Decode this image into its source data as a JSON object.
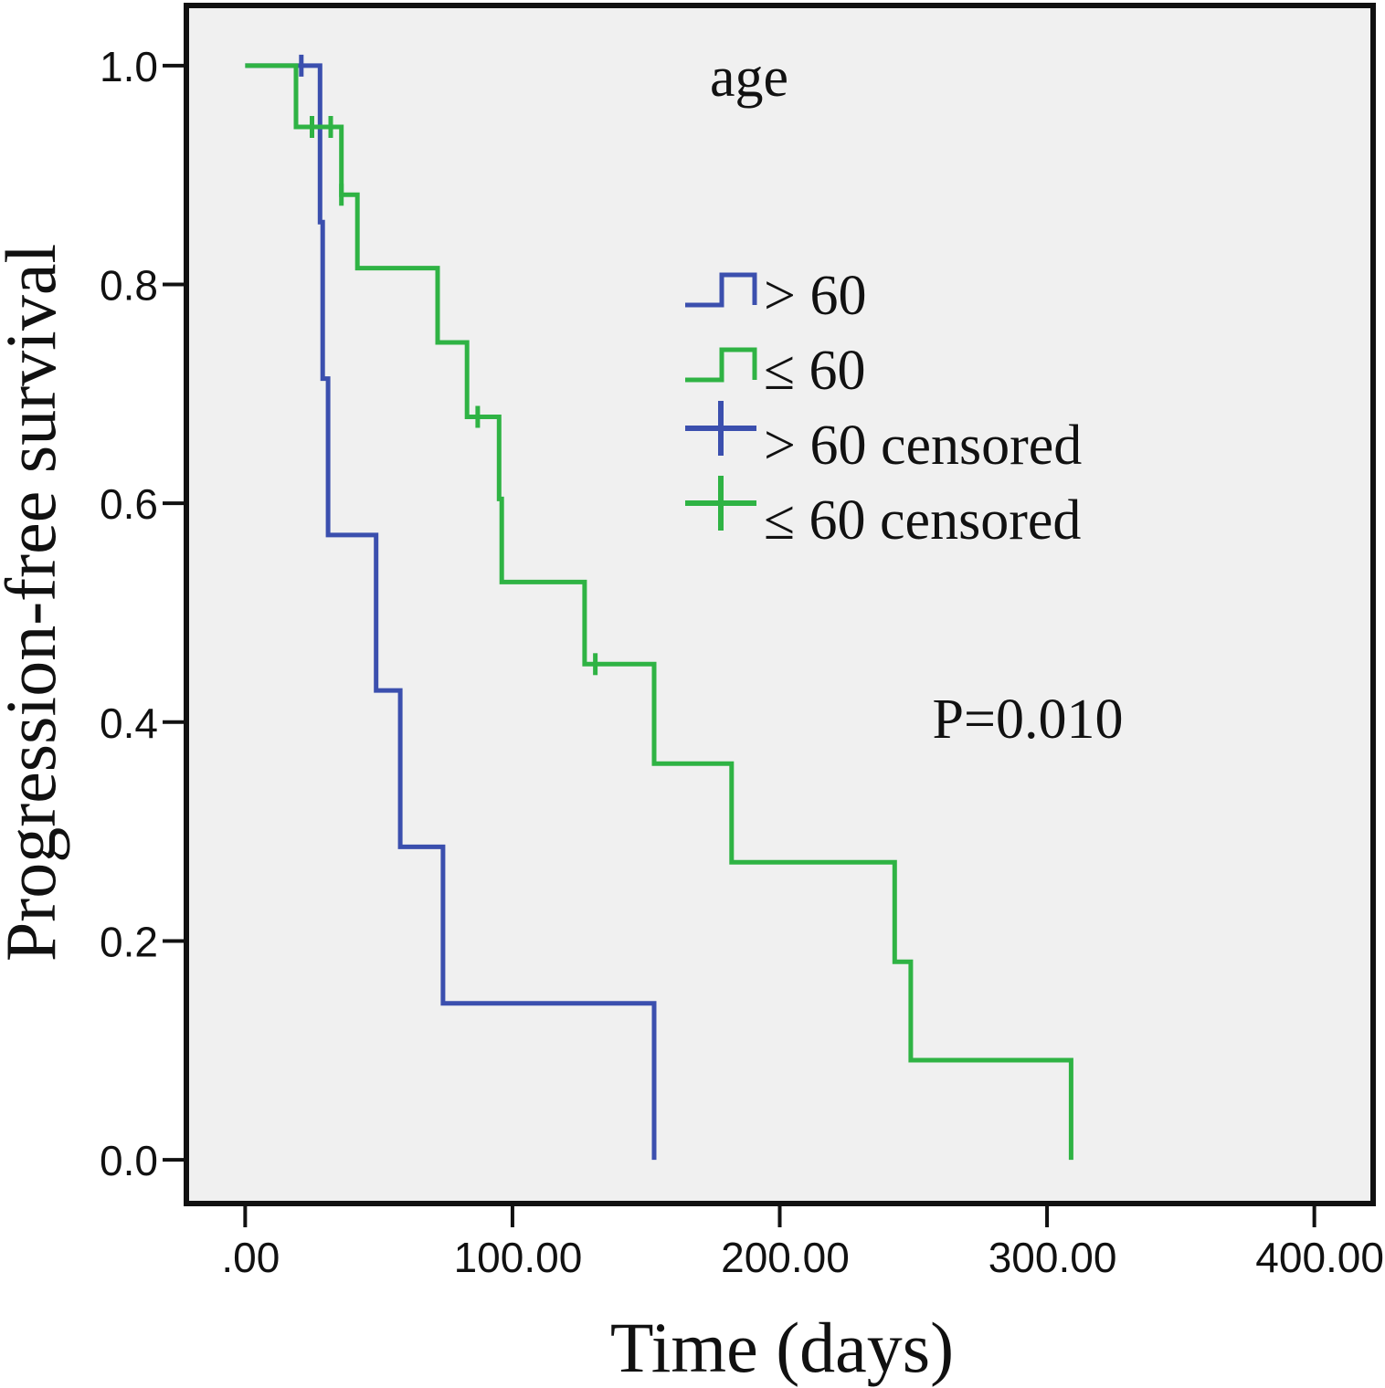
{
  "chart_data": {
    "type": "line",
    "subtype": "kaplan-meier-step",
    "title": "age",
    "xlabel": "Time (days)",
    "ylabel": "Progression-free survival",
    "xlim": [
      -22,
      422
    ],
    "ylim": [
      -0.04,
      1.055
    ],
    "xticks": [
      0,
      100,
      200,
      300,
      400
    ],
    "xtick_labels": [
      ".00",
      "100.00",
      "200.00",
      "300.00",
      "400.00"
    ],
    "yticks": [
      0.0,
      0.2,
      0.4,
      0.6,
      0.8,
      1.0
    ],
    "ytick_labels": [
      "0.0",
      "0.2",
      "0.4",
      "0.6",
      "0.8",
      "1.0"
    ],
    "annotation": "P=0.010",
    "grid": false,
    "legend_position": "upper-center",
    "series": [
      {
        "name": "> 60",
        "color": "#3b4fae",
        "points": [
          [
            0,
            1.0
          ],
          [
            28,
            1.0
          ],
          [
            28,
            0.857
          ],
          [
            29,
            0.857
          ],
          [
            29,
            0.714
          ],
          [
            31,
            0.714
          ],
          [
            31,
            0.571
          ],
          [
            49,
            0.571
          ],
          [
            49,
            0.429
          ],
          [
            58,
            0.429
          ],
          [
            58,
            0.286
          ],
          [
            74,
            0.286
          ],
          [
            74,
            0.143
          ],
          [
            153,
            0.143
          ],
          [
            153,
            0.0
          ]
        ],
        "censored": [
          [
            21,
            1.0
          ]
        ]
      },
      {
        "name": "≤ 60",
        "color": "#2fb344",
        "points": [
          [
            0,
            1.0
          ],
          [
            19,
            1.0
          ],
          [
            19,
            0.944
          ],
          [
            36,
            0.944
          ],
          [
            36,
            0.882
          ],
          [
            42,
            0.882
          ],
          [
            42,
            0.815
          ],
          [
            72,
            0.815
          ],
          [
            72,
            0.747
          ],
          [
            83,
            0.747
          ],
          [
            83,
            0.679
          ],
          [
            95,
            0.679
          ],
          [
            95,
            0.604
          ],
          [
            96,
            0.604
          ],
          [
            96,
            0.528
          ],
          [
            127,
            0.528
          ],
          [
            127,
            0.453
          ],
          [
            153,
            0.453
          ],
          [
            153,
            0.362
          ],
          [
            182,
            0.362
          ],
          [
            182,
            0.272
          ],
          [
            243,
            0.272
          ],
          [
            243,
            0.181
          ],
          [
            249,
            0.181
          ],
          [
            249,
            0.091
          ],
          [
            309,
            0.091
          ],
          [
            309,
            0.0
          ]
        ],
        "censored": [
          [
            25,
            0.944
          ],
          [
            32,
            0.944
          ],
          [
            36,
            0.882
          ],
          [
            87,
            0.679
          ],
          [
            131,
            0.453
          ]
        ]
      }
    ],
    "legend": [
      {
        "label": "> 60",
        "kind": "line",
        "color": "#3b4fae"
      },
      {
        "label": "≤ 60",
        "kind": "line",
        "color": "#2fb344"
      },
      {
        "label": "> 60 censored",
        "kind": "censor",
        "color": "#3b4fae"
      },
      {
        "label": "≤ 60 censored",
        "kind": "censor",
        "color": "#2fb344"
      }
    ]
  }
}
